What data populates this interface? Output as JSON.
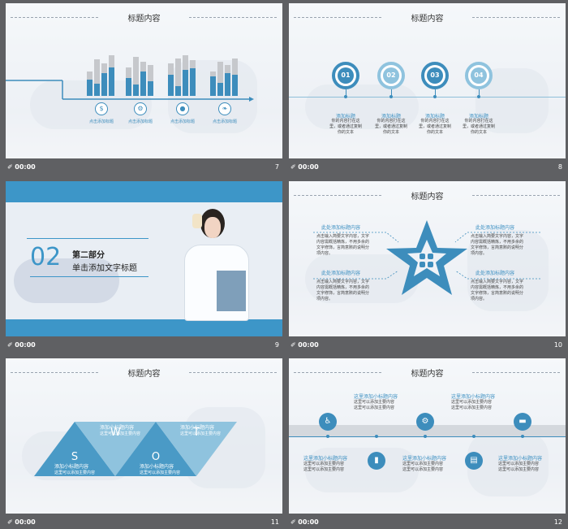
{
  "colors": {
    "accent": "#3d8dbc",
    "light_accent": "#8fc3de",
    "frame_bg": "#5f6063"
  },
  "footer_time": "00:00",
  "slides": [
    {
      "number": "7",
      "title": "标题内容",
      "items": [
        {
          "icon": "dollar-icon",
          "label": "点击添加标题"
        },
        {
          "icon": "gears-icon",
          "label": "点击添加标题"
        },
        {
          "icon": "drop-icon",
          "label": "点击添加标题"
        },
        {
          "icon": "leaf-icon",
          "label": "点击添加标题"
        }
      ]
    },
    {
      "number": "8",
      "title": "标题内容",
      "steps": [
        {
          "num": "01",
          "label": "添加标题",
          "text": "你的内容打在这里，或者通过复制你的文本"
        },
        {
          "num": "02",
          "label": "添加标题",
          "text": "你的内容打在这里，或者通过复制你的文本"
        },
        {
          "num": "03",
          "label": "添加标题",
          "text": "你的内容打在这里，或者通过复制你的文本"
        },
        {
          "num": "04",
          "label": "添加标题",
          "text": "你的内容打在这里，或者通过复制你的文本"
        }
      ]
    },
    {
      "number": "9",
      "part_num": "02",
      "part_label": "第二部分",
      "part_title": "单击添加文字标题"
    },
    {
      "number": "10",
      "title": "标题内容",
      "blocks": [
        {
          "title": "此处添加标题内容",
          "text": "点击输入简要文字内容，文字内容需概括精炼，不用多余的文字修饰，言简意赅的说明分项内容。"
        },
        {
          "title": "此处添加标题内容",
          "text": "点击输入简要文字内容，文字内容需概括精炼，不用多余的文字修饰，言简意赅的说明分项内容。"
        },
        {
          "title": "此处添加标题内容",
          "text": "点击输入简要文字内容，文字内容需概括精炼，不用多余的文字修饰，言简意赅的说明分项内容。"
        },
        {
          "title": "此处添加标题内容",
          "text": "点击输入简要文字内容，文字内容需概括精炼，不用多余的文字修饰，言简意赅的说明分项内容。"
        }
      ]
    },
    {
      "number": "11",
      "title": "标题内容",
      "letters": [
        "S",
        "W",
        "O",
        "T"
      ],
      "blocks": [
        {
          "title": "添加小标题内容",
          "text": "这里可以添加主要内容"
        },
        {
          "title": "添加小标题内容",
          "text": "这里可以添加主要内容"
        },
        {
          "title": "添加小标题内容",
          "text": "这里可以添加主要内容"
        },
        {
          "title": "添加小标题内容",
          "text": "这里可以添加主要内容"
        }
      ]
    },
    {
      "number": "12",
      "title": "标题内容",
      "top": [
        {
          "title": "这里添加小标题内容",
          "text": "这里可以添加主要内容这里可以添加主要内容"
        },
        {
          "title": "这里添加小标题内容",
          "text": "这里可以添加主要内容这里可以添加主要内容"
        }
      ],
      "bottom": [
        {
          "title": "这里添加小标题内容",
          "text": "这里可以添加主要内容这里可以添加主要内容"
        },
        {
          "title": "这里添加小标题内容",
          "text": "这里可以添加主要内容这里可以添加主要内容"
        },
        {
          "title": "这里添加小标题内容",
          "text": "这里可以添加主要内容这里可以添加主要内容"
        }
      ],
      "icons": [
        "wheelchair-icon",
        "chart-icon",
        "gear-icon",
        "document-icon",
        "chat-icon"
      ]
    }
  ]
}
